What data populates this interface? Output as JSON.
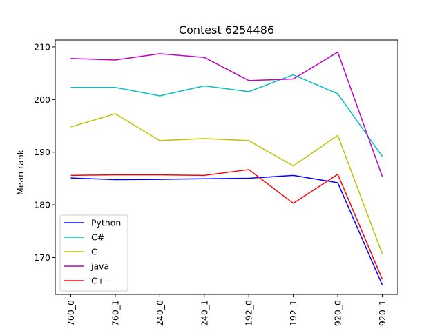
{
  "chart_data": {
    "type": "line",
    "title": "Contest 6254486",
    "xlabel": "",
    "ylabel": "Mean rank",
    "categories": [
      "760_0",
      "760_1",
      "240_0",
      "240_1",
      "192_0",
      "192_1",
      "920_0",
      "920_1"
    ],
    "ylim": [
      163,
      211.3
    ],
    "yticks": [
      170,
      180,
      190,
      200,
      210
    ],
    "grid": false,
    "legend_position": "lower-left",
    "series": [
      {
        "name": "Python",
        "color": "#0000ff",
        "values": [
          185.1,
          184.8,
          184.85,
          184.95,
          185.05,
          185.6,
          184.2,
          164.8
        ]
      },
      {
        "name": "C#",
        "color": "#00bfbf",
        "values": [
          202.3,
          202.3,
          200.7,
          202.6,
          201.5,
          204.7,
          201.1,
          189.2
        ]
      },
      {
        "name": "C",
        "color": "#bfbf00",
        "values": [
          194.8,
          197.3,
          192.2,
          192.6,
          192.2,
          187.4,
          193.2,
          170.7
        ]
      },
      {
        "name": "java",
        "color": "#bf00bf",
        "values": [
          207.8,
          207.5,
          208.7,
          208.0,
          203.6,
          203.9,
          209.0,
          185.4
        ]
      },
      {
        "name": "C++",
        "color": "#ff0000",
        "values": [
          185.6,
          185.7,
          185.7,
          185.6,
          186.7,
          180.3,
          185.8,
          165.9
        ]
      }
    ]
  }
}
